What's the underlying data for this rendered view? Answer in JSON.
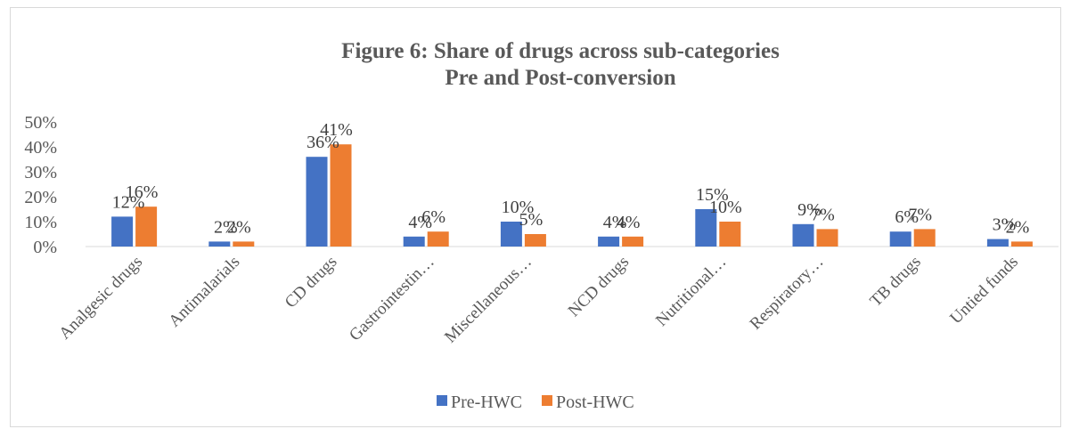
{
  "chart_data": {
    "type": "bar",
    "title": "Figure 6: Share of drugs across sub-categories",
    "subtitle": "Pre and Post-conversion",
    "categories": [
      "Analgesic drugs",
      "Antimalarials",
      "CD drugs",
      "Gastrointestin…",
      "Miscellaneous…",
      "NCD drugs",
      "Nutritional…",
      "Respiratory…",
      "TB drugs",
      "Untied funds"
    ],
    "series": [
      {
        "name": "Pre-HWC",
        "color": "#4472c4",
        "values": [
          12,
          2,
          36,
          4,
          10,
          4,
          15,
          9,
          6,
          3
        ]
      },
      {
        "name": "Post-HWC",
        "color": "#ed7d31",
        "values": [
          16,
          2,
          41,
          6,
          5,
          4,
          10,
          7,
          7,
          2
        ]
      }
    ],
    "data_labels": {
      "Pre-HWC": [
        "12%",
        "2%",
        "36%",
        "4%",
        "10%",
        "4%",
        "15%",
        "9%",
        "6%",
        "3%"
      ],
      "Post-HWC": [
        "16%",
        "2%",
        "41%",
        "6%",
        "5%",
        "4%",
        "10%",
        "7%",
        "7%",
        "2%"
      ]
    },
    "y_tick_labels": [
      "0%",
      "10%",
      "20%",
      "30%",
      "40%",
      "50%"
    ],
    "ylim": [
      0,
      50
    ],
    "unit": "%",
    "grid": false,
    "legend_position": "bottom"
  }
}
